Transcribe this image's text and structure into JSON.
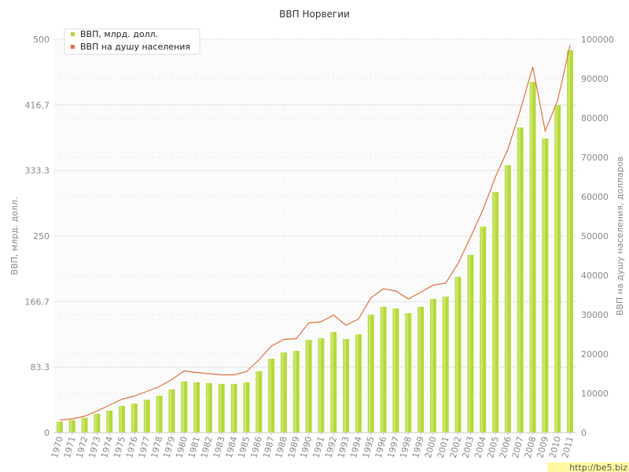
{
  "chart_data": {
    "type": "bar",
    "title": "ВВП Норвегии",
    "categories": [
      "1970",
      "1971",
      "1972",
      "1973",
      "1974",
      "1975",
      "1976",
      "1977",
      "1978",
      "1979",
      "1980",
      "1981",
      "1982",
      "1983",
      "1984",
      "1985",
      "1986",
      "1987",
      "1988",
      "1989",
      "1990",
      "1991",
      "1992",
      "1993",
      "1994",
      "1995",
      "1996",
      "1997",
      "1998",
      "1999",
      "2000",
      "2001",
      "2002",
      "2003",
      "2004",
      "2005",
      "2006",
      "2007",
      "2008",
      "2009",
      "2010",
      "2011"
    ],
    "series": [
      {
        "name": "ВВП, млрд. долл.",
        "type": "bar",
        "axis": "left",
        "color": "#b5d93a",
        "values": [
          14,
          16,
          19,
          24,
          28,
          34,
          37,
          42,
          47,
          55,
          65,
          64,
          63,
          62,
          62,
          64,
          78,
          94,
          102,
          104,
          118,
          120,
          128,
          119,
          125,
          150,
          160,
          158,
          152,
          160,
          170,
          173,
          198,
          226,
          262,
          306,
          340,
          388,
          446,
          374,
          416,
          486
        ]
      },
      {
        "name": "ВВП на душу населения",
        "type": "line",
        "axis": "right",
        "color": "#e07040",
        "values": [
          3200,
          3500,
          4200,
          5500,
          7000,
          8500,
          9300,
          10500,
          11700,
          13500,
          15700,
          15300,
          15000,
          14700,
          14700,
          15500,
          18500,
          22000,
          23700,
          23900,
          27900,
          28200,
          29900,
          27300,
          28900,
          34300,
          36600,
          36000,
          34000,
          35700,
          37500,
          38000,
          43000,
          49700,
          56700,
          65000,
          72000,
          82000,
          93000,
          76700,
          84500,
          98500
        ]
      }
    ],
    "ylabel": "ВВП, млрд. долл.",
    "ylim": [
      0,
      500
    ],
    "yticks": [
      "0",
      "83.3",
      "166.7",
      "250",
      "333.3",
      "416.7",
      "500"
    ],
    "y2label": "ВВП на душу населения, долларов",
    "y2lim": [
      0,
      100000
    ],
    "y2ticks": [
      "0",
      "10000",
      "20000",
      "30000",
      "40000",
      "50000",
      "60000",
      "70000",
      "80000",
      "90000",
      "100000"
    ],
    "grid": true,
    "legend_position": "top-left"
  },
  "watermark": "http://be5.biz"
}
